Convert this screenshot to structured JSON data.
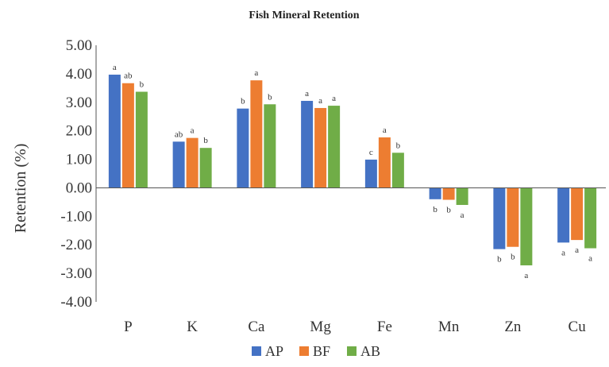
{
  "chart_data": {
    "type": "bar",
    "title": "Fish Mineral Retention",
    "xlabel": "",
    "ylabel": "Retention (%)",
    "ylim": [
      -4.0,
      5.0
    ],
    "ytick_step": 1.0,
    "ytick_labels": [
      "5.00",
      "4.00",
      "3.00",
      "2.00",
      "1.00",
      "0.00",
      "-1.00",
      "-2.00",
      "-3.00",
      "-4.00"
    ],
    "grid": false,
    "legend_position": "bottom",
    "categories": [
      "P",
      "K",
      "Ca",
      "Mg",
      "Fe",
      "Mn",
      "Zn",
      "Cu"
    ],
    "series": [
      {
        "name": "AP",
        "color": "#4472C4",
        "values": [
          3.97,
          1.62,
          2.78,
          3.05,
          0.99,
          -0.4,
          -2.15,
          -1.92
        ],
        "letters": [
          "a",
          "ab",
          "b",
          "a",
          "c",
          "b",
          "b",
          "a"
        ]
      },
      {
        "name": "BF",
        "color": "#ED7D31",
        "values": [
          3.67,
          1.75,
          3.77,
          2.8,
          1.77,
          -0.42,
          -2.07,
          -1.83
        ],
        "letters": [
          "ab",
          "a",
          "a",
          "a",
          "a",
          "b",
          "b",
          "a"
        ]
      },
      {
        "name": "AB",
        "color": "#70AD47",
        "values": [
          3.37,
          1.4,
          2.93,
          2.88,
          1.23,
          -0.6,
          -2.72,
          -2.12
        ],
        "letters": [
          "b",
          "b",
          "b",
          "a",
          "b",
          "a",
          "a",
          "a"
        ]
      }
    ]
  }
}
